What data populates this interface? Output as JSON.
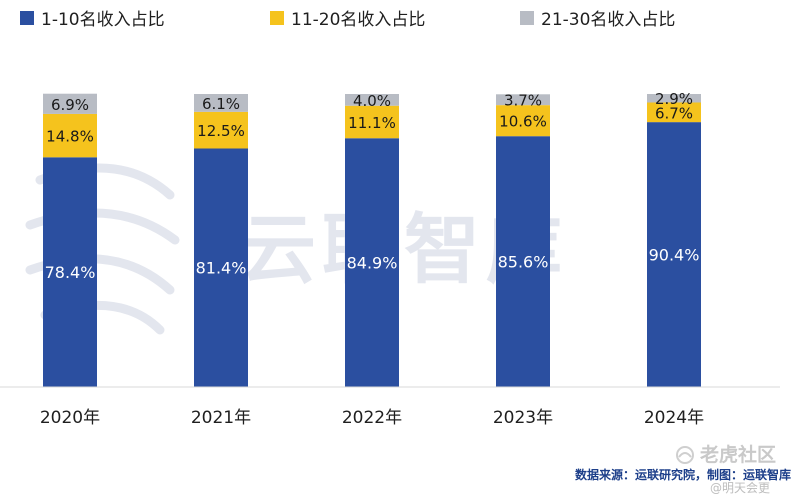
{
  "chart_data": {
    "type": "bar",
    "stacked": true,
    "categories": [
      "2020年",
      "2021年",
      "2022年",
      "2023年",
      "2024年"
    ],
    "series": [
      {
        "name": "1-10名收入占比",
        "values": [
          78.4,
          81.4,
          84.9,
          85.6,
          90.4
        ],
        "labels": [
          "78.4%",
          "81.4%",
          "84.9%",
          "85.6%",
          "90.4%"
        ],
        "color": "#2b4fa0"
      },
      {
        "name": "11-20名收入占比",
        "values": [
          14.8,
          12.5,
          11.1,
          10.6,
          6.7
        ],
        "labels": [
          "14.8%",
          "12.5%",
          "11.1%",
          "10.6%",
          "6.7%"
        ],
        "color": "#f5c31d"
      },
      {
        "name": "21-30名收入占比",
        "values": [
          6.9,
          6.1,
          4.0,
          3.7,
          2.9
        ],
        "labels": [
          "6.9%",
          "6.1%",
          "4.0%",
          "3.7%",
          "2.9%"
        ],
        "color": "#b8bcc4"
      }
    ],
    "ylim": [
      0,
      100
    ],
    "legend_position": "top",
    "grid": false,
    "title": "",
    "xlabel": "",
    "ylabel": ""
  },
  "watermark": {
    "text": "云联智库"
  },
  "source_note": "数据来源：运联研究院，制图：运联智库",
  "community_mark": {
    "name": "老虎社区",
    "handle": "@明天会更"
  }
}
